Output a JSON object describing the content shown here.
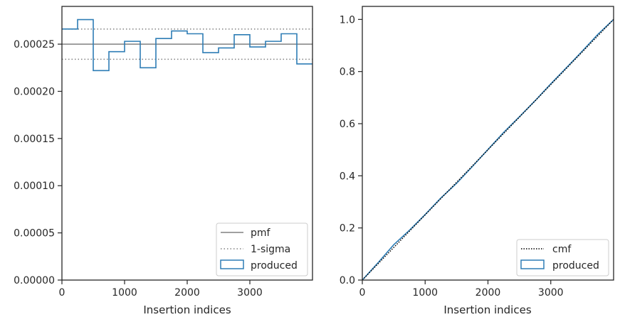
{
  "colors": {
    "hist": "#2e7db5",
    "pmf": "#808080",
    "sigma": "#808080",
    "cmf": "#000000",
    "axes": "#262626"
  },
  "chart_data": [
    {
      "type": "histogram",
      "title": "",
      "xlabel": "Insertion indices",
      "ylabel": "",
      "xlim": [
        0,
        4000
      ],
      "ylim": [
        0,
        0.00029
      ],
      "xticks": [
        0,
        1000,
        2000,
        3000
      ],
      "xtick_labels": [
        "0",
        "1000",
        "2000",
        "3000"
      ],
      "yticks": [
        0,
        5e-05,
        0.0001,
        0.00015,
        0.0002,
        0.00025
      ],
      "ytick_labels": [
        "0.00000",
        "0.00005",
        "0.00010",
        "0.00015",
        "0.00020",
        "0.00025"
      ],
      "grid": false,
      "legend_position": "lower-right",
      "bin_edges": [
        0,
        250,
        500,
        750,
        1000,
        1250,
        1500,
        1750,
        2000,
        2250,
        2500,
        2750,
        3000,
        3250,
        3500,
        3750,
        4000
      ],
      "bin_values": [
        0.000266,
        0.000276,
        0.000222,
        0.000242,
        0.000253,
        0.000225,
        0.000256,
        0.000264,
        0.000261,
        0.000241,
        0.000246,
        0.00026,
        0.000247,
        0.000253,
        0.000261,
        0.000229
      ],
      "pmf": 0.00025,
      "sigma_band": [
        0.000234,
        0.000266
      ],
      "legend": [
        {
          "label": "pmf",
          "style": "solid"
        },
        {
          "label": "1-sigma",
          "style": "dotted"
        },
        {
          "label": "produced",
          "style": "box"
        }
      ]
    },
    {
      "type": "line",
      "title": "",
      "xlabel": "Insertion indices",
      "ylabel": "",
      "xlim": [
        0,
        4000
      ],
      "ylim": [
        0,
        1.05
      ],
      "xticks": [
        0,
        1000,
        2000,
        3000
      ],
      "xtick_labels": [
        "0",
        "1000",
        "2000",
        "3000"
      ],
      "yticks": [
        0,
        0.2,
        0.4,
        0.6,
        0.8,
        1.0
      ],
      "ytick_labels": [
        "0.0",
        "0.2",
        "0.4",
        "0.6",
        "0.8",
        "1.0"
      ],
      "grid": false,
      "legend_position": "lower-right",
      "series": [
        {
          "name": "cmf",
          "style": "dotted",
          "x": [
            0,
            4000
          ],
          "y": [
            0,
            1
          ]
        },
        {
          "name": "produced",
          "style": "solid",
          "x": [
            0,
            250,
            500,
            750,
            1000,
            1250,
            1500,
            1750,
            2000,
            2250,
            2500,
            2750,
            3000,
            3250,
            3500,
            3750,
            4000
          ],
          "y": [
            0,
            0.0665,
            0.1355,
            0.191,
            0.2515,
            0.3148,
            0.371,
            0.435,
            0.501,
            0.5663,
            0.6265,
            0.688,
            0.753,
            0.8148,
            0.878,
            0.9428,
            1.0
          ]
        }
      ],
      "legend": [
        {
          "label": "cmf",
          "style": "dotted"
        },
        {
          "label": "produced",
          "style": "box"
        }
      ]
    }
  ]
}
